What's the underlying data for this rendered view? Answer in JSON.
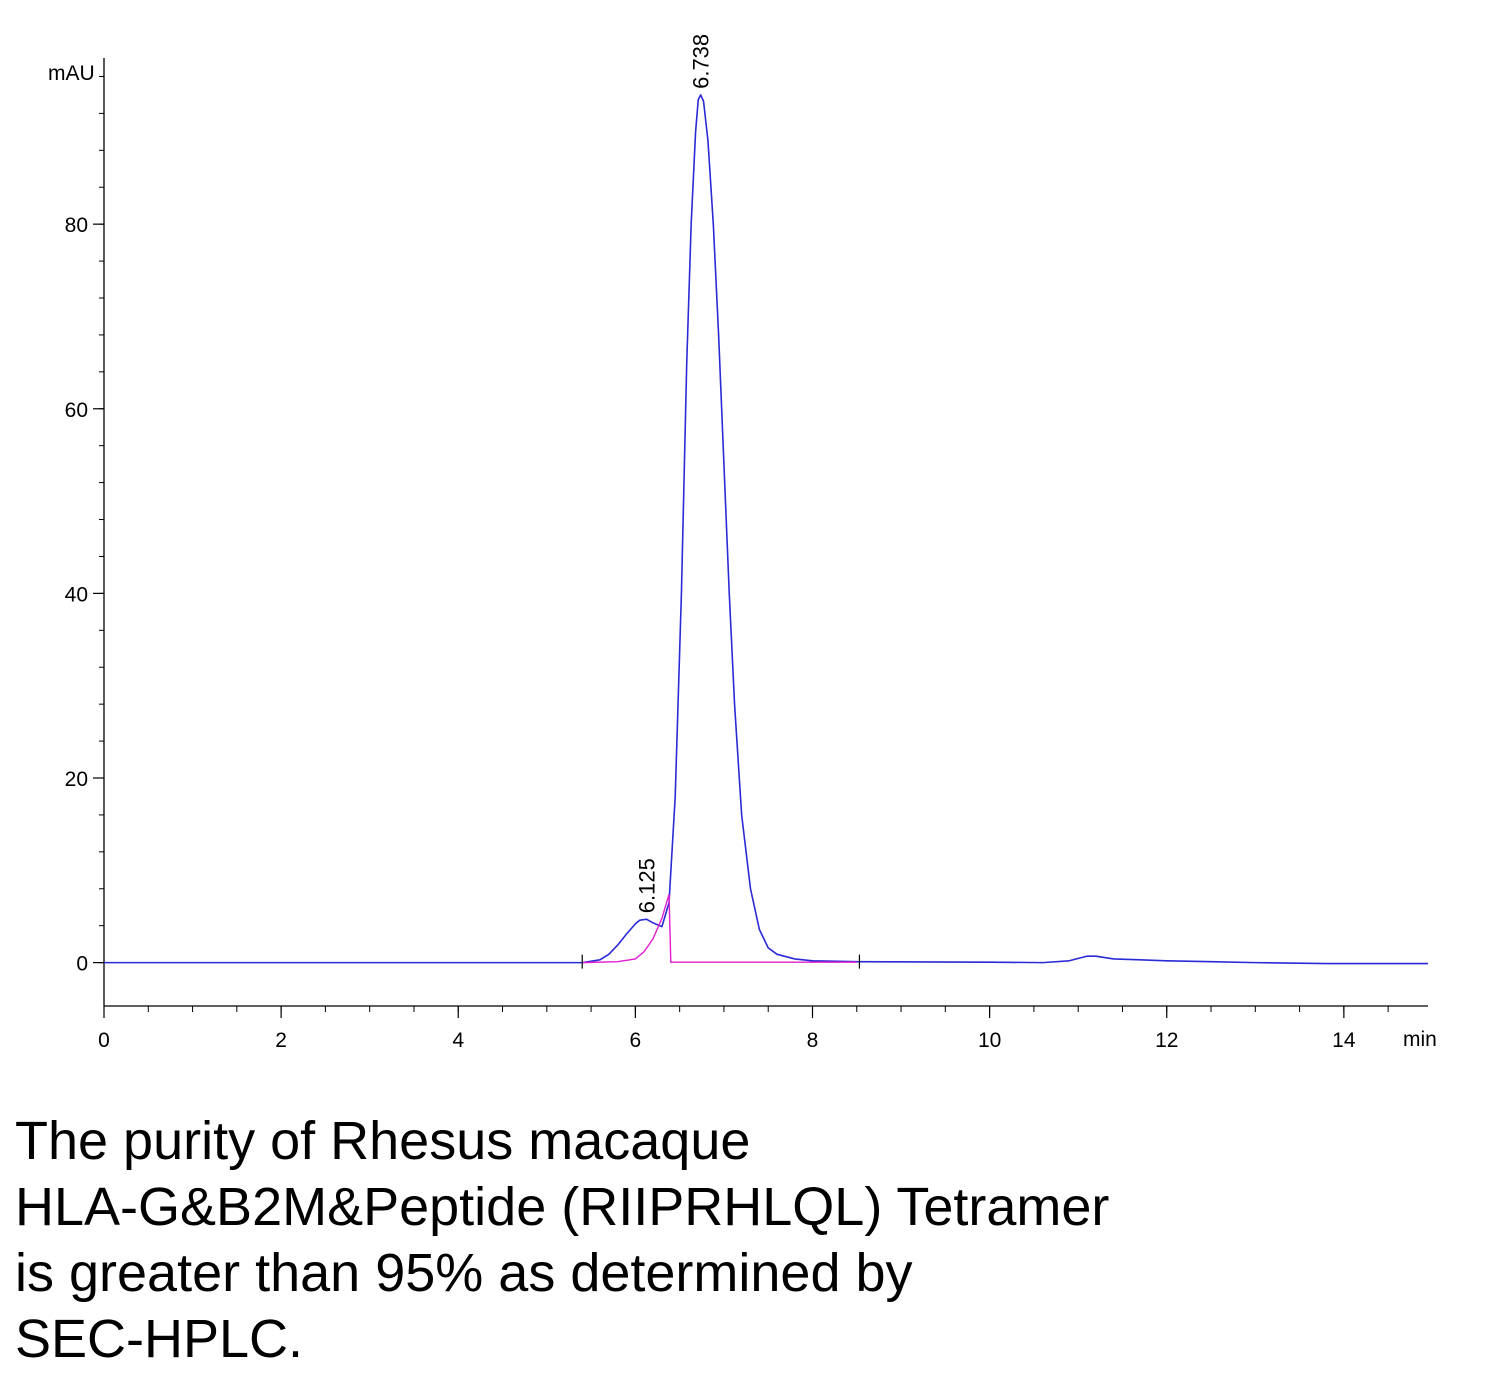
{
  "chart_data": {
    "type": "line",
    "title": "",
    "xlabel": "",
    "ylabel": "",
    "x_unit_label": "min",
    "y_unit_label": "mAU",
    "xlim": [
      0,
      14.95
    ],
    "ylim": [
      -4.7,
      98
    ],
    "x_ticks": [
      0,
      2,
      4,
      6,
      8,
      10,
      12,
      14
    ],
    "x_tick_labels": [
      "0",
      "2",
      "4",
      "6",
      "8",
      "10",
      "12",
      "14"
    ],
    "x_minor_step": 0.5,
    "y_ticks": [
      0,
      20,
      40,
      60,
      80
    ],
    "y_tick_labels": [
      "0",
      "20",
      "40",
      "60",
      "80"
    ],
    "y_minor_step": 4,
    "grid": false,
    "colors": {
      "signal": "#2a2ad6",
      "baseline": "#e11fd0",
      "axis": "#000000"
    },
    "series": [
      {
        "x": [
          0,
          5.4,
          5.6,
          5.7,
          5.8,
          5.9,
          6.0,
          6.05,
          6.125,
          6.2,
          6.3,
          6.38,
          6.45,
          6.52,
          6.58,
          6.63,
          6.68,
          6.71,
          6.738,
          6.77,
          6.82,
          6.88,
          6.94,
          7.0,
          7.06,
          7.12,
          7.2,
          7.3,
          7.4,
          7.5,
          7.6,
          7.8,
          8.0,
          8.5,
          10.0,
          10.6,
          10.9,
          11.1,
          11.2,
          11.4,
          11.7,
          12.0,
          12.5,
          13.0,
          13.8,
          14.95
        ],
        "y": [
          0,
          0,
          0.3,
          0.9,
          1.9,
          3.1,
          4.2,
          4.6,
          4.7,
          4.3,
          3.9,
          6.5,
          18,
          40,
          65,
          80,
          90,
          93.5,
          94,
          93.3,
          89,
          80,
          68,
          54,
          40,
          28,
          16,
          8,
          3.6,
          1.6,
          0.9,
          0.4,
          0.2,
          0.1,
          0.05,
          0,
          0.2,
          0.7,
          0.7,
          0.4,
          0.3,
          0.2,
          0.1,
          0,
          -0.1,
          -0.1
        ]
      }
    ],
    "baseline_segment": {
      "x": [
        5.4,
        5.8,
        6.0,
        6.1,
        6.2,
        6.3,
        6.38,
        6.4,
        6.6,
        8.5
      ],
      "y": [
        0,
        0.1,
        0.4,
        1.2,
        2.6,
        4.8,
        7.4,
        0.05,
        0.05,
        0.05
      ]
    },
    "integration_markers": [
      5.4,
      8.53
    ],
    "peaks": [
      {
        "rt": 6.125,
        "height": 4.7,
        "label": "6.125"
      },
      {
        "rt": 6.738,
        "height": 94,
        "label": "6.738"
      }
    ]
  },
  "caption": {
    "lines": [
      "The purity of Rhesus macaque",
      "HLA-G&B2M&Peptide (RIIPRHLQL) Tetramer",
      "is greater than 95% as determined by",
      "SEC-HPLC."
    ]
  }
}
